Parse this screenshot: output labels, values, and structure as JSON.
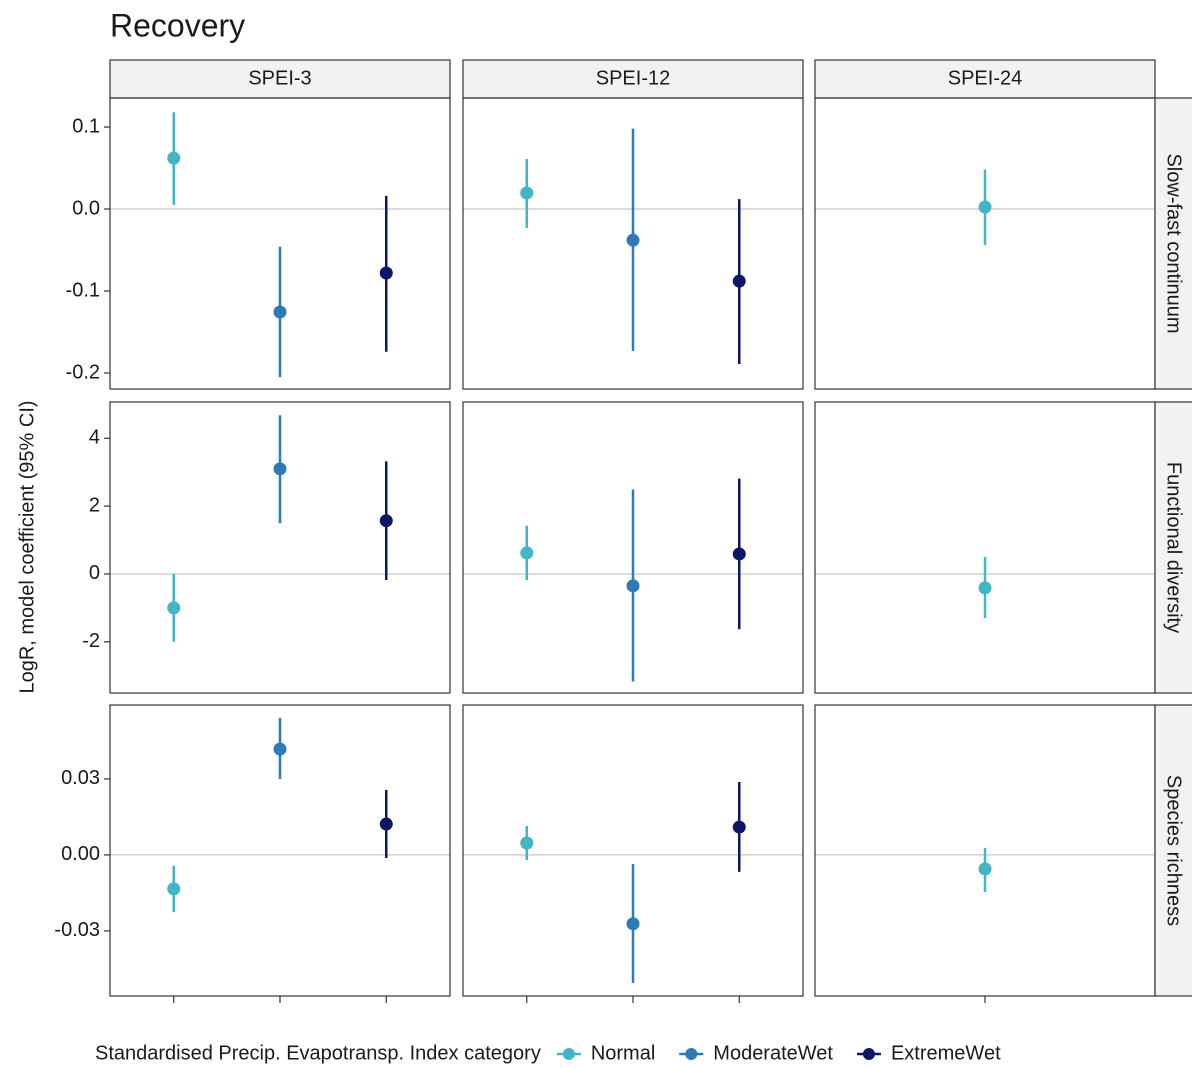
{
  "chart_data": {
    "type": "pointrange",
    "title": "Recovery",
    "ylabel": "LogR, model coefficient (95% CI)",
    "legend_title": "Standardised Precip. Evapotransp. Index category",
    "hline": 0,
    "series": [
      {
        "name": "Normal",
        "color": "#41b6c4"
      },
      {
        "name": "ModerateWet",
        "color": "#2c7bb6"
      },
      {
        "name": "ExtremeWet",
        "color": "#0c1768"
      }
    ],
    "columns": [
      "SPEI-3",
      "SPEI-12",
      "SPEI-24"
    ],
    "rows": [
      {
        "label": "Slow-fast continuum",
        "ylim": [
          -0.2195,
          0.1354
        ],
        "yticks": [
          0.1,
          {
            "value": 0,
            "label": "0.0"
          },
          -0.1,
          -0.2
        ],
        "panels": [
          {
            "values": [
              0.062,
              -0.1256,
              -0.078
            ],
            "lower": [
              0.005,
              -0.205,
              -0.174
            ],
            "upper": [
              0.118,
              -0.046,
              0.016
            ]
          },
          {
            "values": [
              0.0195,
              -0.038,
              -0.088
            ],
            "lower": [
              -0.023,
              -0.173,
              -0.189
            ],
            "upper": [
              0.061,
              0.098,
              0.012
            ]
          },
          {
            "values": [
              0.0024
            ],
            "lower": [
              -0.044
            ],
            "upper": [
              0.048
            ]
          }
        ]
      },
      {
        "label": "Functional diversity",
        "ylim": [
          -3.51,
          5.07
        ],
        "yticks": [
          4,
          2,
          0,
          -2
        ],
        "panels": [
          {
            "values": [
              -1.0,
              3.1,
              1.57
            ],
            "lower": [
              -2.0,
              1.5,
              -0.18
            ],
            "upper": [
              0.0,
              4.68,
              3.32
            ]
          },
          {
            "values": [
              0.62,
              -0.35,
              0.59
            ],
            "lower": [
              -0.18,
              -3.17,
              -1.63
            ],
            "upper": [
              1.42,
              2.49,
              2.81
            ]
          },
          {
            "values": [
              -0.41
            ],
            "lower": [
              -1.3
            ],
            "upper": [
              0.5
            ]
          }
        ]
      },
      {
        "label": "Species richness",
        "ylim": [
          -0.0557,
          0.0592
        ],
        "yticks": [
          0.03,
          {
            "value": 0,
            "label": "0.00"
          },
          -0.03
        ],
        "panels": [
          {
            "values": [
              -0.0134,
              0.0418,
              0.0122
            ],
            "lower": [
              -0.0225,
              0.03,
              -0.0012
            ],
            "upper": [
              -0.0043,
              0.0541,
              0.0257
            ]
          },
          {
            "values": [
              0.0047,
              -0.0272,
              0.011
            ],
            "lower": [
              -0.002,
              -0.0505,
              -0.0067
            ],
            "upper": [
              0.0114,
              -0.0036,
              0.0288
            ]
          },
          {
            "values": [
              -0.0055
            ],
            "lower": [
              -0.0146
            ],
            "upper": [
              0.0028
            ]
          }
        ]
      }
    ]
  }
}
